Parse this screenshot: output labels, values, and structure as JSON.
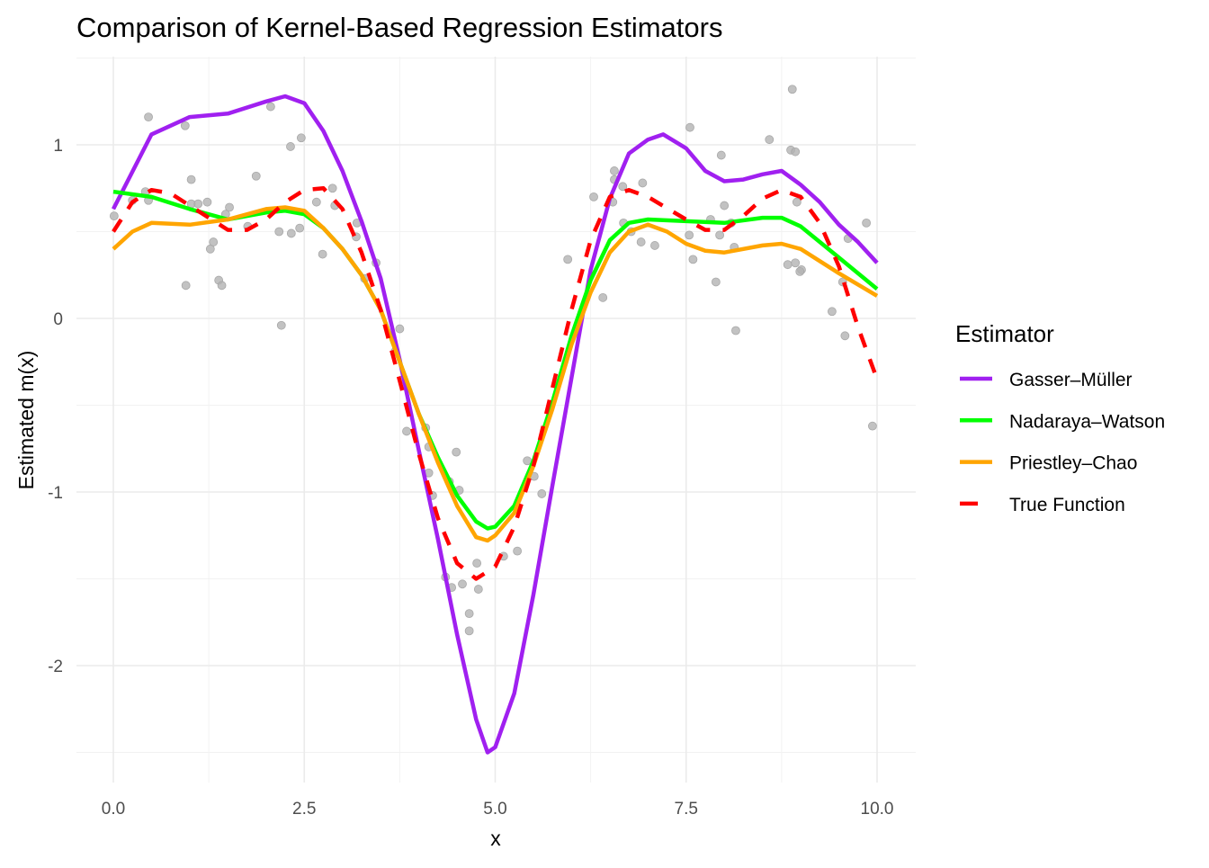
{
  "chart_data": {
    "type": "line",
    "title": "Comparison of Kernel-Based Regression Estimators",
    "xlabel": "x",
    "ylabel": "Estimated m(x)",
    "xlim": [
      -0.5,
      10.5
    ],
    "ylim": [
      -2.68,
      1.51
    ],
    "grid": true,
    "x_ticks": [
      0.0,
      2.5,
      5.0,
      7.5,
      10.0
    ],
    "x_tick_labels": [
      "0.0",
      "2.5",
      "5.0",
      "7.5",
      "10.0"
    ],
    "y_ticks": [
      1,
      0,
      -1,
      -2
    ],
    "y_tick_labels": [
      "1",
      "0",
      "-1",
      "-2"
    ],
    "legend": {
      "title": "Estimator",
      "placement": "right"
    },
    "points_color": "#b3b3b3",
    "points": [
      [
        0.01,
        0.59
      ],
      [
        0.25,
        0.68
      ],
      [
        0.42,
        0.73
      ],
      [
        0.46,
        0.68
      ],
      [
        0.46,
        1.16
      ],
      [
        0.94,
        1.11
      ],
      [
        1.02,
        0.8
      ],
      [
        1.02,
        0.66
      ],
      [
        1.11,
        0.66
      ],
      [
        1.23,
        0.67
      ],
      [
        1.52,
        0.64
      ],
      [
        1.47,
        0.6
      ],
      [
        1.31,
        0.44
      ],
      [
        1.27,
        0.4
      ],
      [
        0.95,
        0.19
      ],
      [
        1.38,
        0.22
      ],
      [
        1.42,
        0.19
      ],
      [
        1.76,
        0.53
      ],
      [
        1.87,
        0.82
      ],
      [
        2.06,
        1.22
      ],
      [
        2.17,
        0.5
      ],
      [
        2.33,
        0.49
      ],
      [
        2.44,
        0.52
      ],
      [
        2.32,
        0.99
      ],
      [
        2.46,
        1.04
      ],
      [
        2.2,
        -0.04
      ],
      [
        2.66,
        0.67
      ],
      [
        2.74,
        0.37
      ],
      [
        2.87,
        0.75
      ],
      [
        2.9,
        0.65
      ],
      [
        3.18,
        0.47
      ],
      [
        3.19,
        0.55
      ],
      [
        3.44,
        0.32
      ],
      [
        3.29,
        0.23
      ],
      [
        3.75,
        -0.06
      ],
      [
        3.69,
        -0.19
      ],
      [
        3.8,
        -0.35
      ],
      [
        3.84,
        -0.65
      ],
      [
        4.09,
        -0.63
      ],
      [
        4.13,
        -0.74
      ],
      [
        4.13,
        -0.89
      ],
      [
        4.49,
        -0.77
      ],
      [
        4.4,
        -0.94
      ],
      [
        4.53,
        -0.99
      ],
      [
        4.18,
        -1.02
      ],
      [
        5.42,
        -0.82
      ],
      [
        5.51,
        -0.91
      ],
      [
        5.61,
        -1.01
      ],
      [
        5.29,
        -1.34
      ],
      [
        5.11,
        -1.37
      ],
      [
        4.76,
        -1.41
      ],
      [
        4.35,
        -1.49
      ],
      [
        4.43,
        -1.55
      ],
      [
        4.57,
        -1.53
      ],
      [
        4.78,
        -1.56
      ],
      [
        4.66,
        -1.7
      ],
      [
        4.66,
        -1.8
      ],
      [
        8.89,
        1.32
      ],
      [
        7.55,
        1.1
      ],
      [
        8.59,
        1.03
      ],
      [
        8.87,
        0.97
      ],
      [
        8.93,
        0.96
      ],
      [
        7.96,
        0.94
      ],
      [
        6.56,
        0.85
      ],
      [
        6.56,
        0.8
      ],
      [
        6.67,
        0.76
      ],
      [
        6.93,
        0.78
      ],
      [
        6.29,
        0.7
      ],
      [
        6.54,
        0.67
      ],
      [
        8.95,
        0.67
      ],
      [
        8.0,
        0.65
      ],
      [
        9.86,
        0.55
      ],
      [
        7.82,
        0.57
      ],
      [
        6.68,
        0.55
      ],
      [
        6.78,
        0.5
      ],
      [
        7.94,
        0.48
      ],
      [
        8.09,
        0.55
      ],
      [
        7.54,
        0.48
      ],
      [
        9.62,
        0.46
      ],
      [
        6.91,
        0.44
      ],
      [
        7.09,
        0.42
      ],
      [
        8.13,
        0.41
      ],
      [
        7.59,
        0.34
      ],
      [
        5.95,
        0.34
      ],
      [
        8.83,
        0.31
      ],
      [
        8.93,
        0.32
      ],
      [
        9.01,
        0.28
      ],
      [
        8.99,
        0.27
      ],
      [
        9.55,
        0.21
      ],
      [
        7.89,
        0.21
      ],
      [
        6.41,
        0.12
      ],
      [
        9.41,
        0.04
      ],
      [
        8.15,
        -0.07
      ],
      [
        9.58,
        -0.1
      ],
      [
        9.94,
        -0.62
      ]
    ],
    "series": [
      {
        "name": "Gasser–Müller",
        "color": "#a020f0",
        "dash": false,
        "x": [
          0,
          0.5,
          1,
          1.5,
          2,
          2.25,
          2.5,
          2.75,
          3,
          3.25,
          3.5,
          3.75,
          4,
          4.25,
          4.5,
          4.75,
          4.9,
          5,
          5.25,
          5.5,
          5.75,
          6,
          6.25,
          6.5,
          6.75,
          7,
          7.2,
          7.5,
          7.75,
          8,
          8.25,
          8.5,
          8.75,
          9,
          9.25,
          9.5,
          9.75,
          10
        ],
        "y": [
          0.63,
          1.06,
          1.16,
          1.18,
          1.25,
          1.28,
          1.24,
          1.08,
          0.85,
          0.56,
          0.23,
          -0.24,
          -0.76,
          -1.27,
          -1.82,
          -2.31,
          -2.5,
          -2.47,
          -2.16,
          -1.59,
          -0.96,
          -0.34,
          0.28,
          0.69,
          0.95,
          1.03,
          1.06,
          0.98,
          0.85,
          0.79,
          0.8,
          0.83,
          0.85,
          0.77,
          0.67,
          0.54,
          0.44,
          0.32
        ]
      },
      {
        "name": "Nadaraya–Watson",
        "color": "#00ff00",
        "dash": false,
        "x": [
          0,
          0.5,
          1,
          1.5,
          2,
          2.25,
          2.5,
          2.75,
          3,
          3.25,
          3.5,
          3.75,
          4,
          4.25,
          4.5,
          4.75,
          4.9,
          5,
          5.25,
          5.5,
          5.75,
          6,
          6.25,
          6.5,
          6.75,
          7,
          7.5,
          8,
          8.5,
          8.75,
          9,
          9.5,
          10
        ],
        "y": [
          0.73,
          0.7,
          0.63,
          0.57,
          0.61,
          0.62,
          0.6,
          0.52,
          0.4,
          0.25,
          0.05,
          -0.25,
          -0.55,
          -0.8,
          -1.02,
          -1.17,
          -1.21,
          -1.2,
          -1.08,
          -0.82,
          -0.48,
          -0.1,
          0.22,
          0.45,
          0.55,
          0.57,
          0.56,
          0.55,
          0.58,
          0.58,
          0.53,
          0.35,
          0.17
        ]
      },
      {
        "name": "Priestley–Chao",
        "color": "#ffa500",
        "dash": false,
        "x": [
          0,
          0.25,
          0.5,
          1,
          1.5,
          2,
          2.25,
          2.5,
          2.75,
          3,
          3.25,
          3.5,
          3.75,
          4,
          4.25,
          4.5,
          4.75,
          4.9,
          5,
          5.25,
          5.5,
          5.75,
          6,
          6.25,
          6.5,
          6.75,
          7,
          7.25,
          7.5,
          7.75,
          8,
          8.5,
          8.75,
          9,
          9.5,
          10
        ],
        "y": [
          0.4,
          0.5,
          0.55,
          0.54,
          0.57,
          0.63,
          0.64,
          0.62,
          0.52,
          0.4,
          0.25,
          0.05,
          -0.25,
          -0.55,
          -0.83,
          -1.08,
          -1.26,
          -1.28,
          -1.25,
          -1.12,
          -0.85,
          -0.52,
          -0.15,
          0.15,
          0.38,
          0.5,
          0.54,
          0.5,
          0.43,
          0.39,
          0.38,
          0.42,
          0.43,
          0.4,
          0.26,
          0.13
        ]
      },
      {
        "name": "True Function",
        "color": "#ff0000",
        "dash": true,
        "x": [
          0,
          0.25,
          0.5,
          0.75,
          1,
          1.5,
          1.75,
          2,
          2.25,
          2.5,
          2.75,
          3,
          3.25,
          3.5,
          3.75,
          4,
          4.25,
          4.5,
          4.75,
          5,
          5.25,
          5.5,
          5.75,
          6,
          6.25,
          6.5,
          6.75,
          7,
          7.5,
          7.75,
          8,
          8.25,
          8.5,
          8.75,
          9,
          9.25,
          9.5,
          9.75,
          10
        ],
        "y": [
          0.5,
          0.67,
          0.74,
          0.72,
          0.65,
          0.51,
          0.51,
          0.57,
          0.67,
          0.74,
          0.75,
          0.63,
          0.38,
          0.05,
          -0.36,
          -0.78,
          -1.15,
          -1.41,
          -1.5,
          -1.43,
          -1.2,
          -0.85,
          -0.4,
          0.05,
          0.45,
          0.7,
          0.74,
          0.7,
          0.57,
          0.51,
          0.51,
          0.59,
          0.69,
          0.74,
          0.7,
          0.55,
          0.3,
          -0.05,
          -0.35
        ]
      }
    ]
  }
}
